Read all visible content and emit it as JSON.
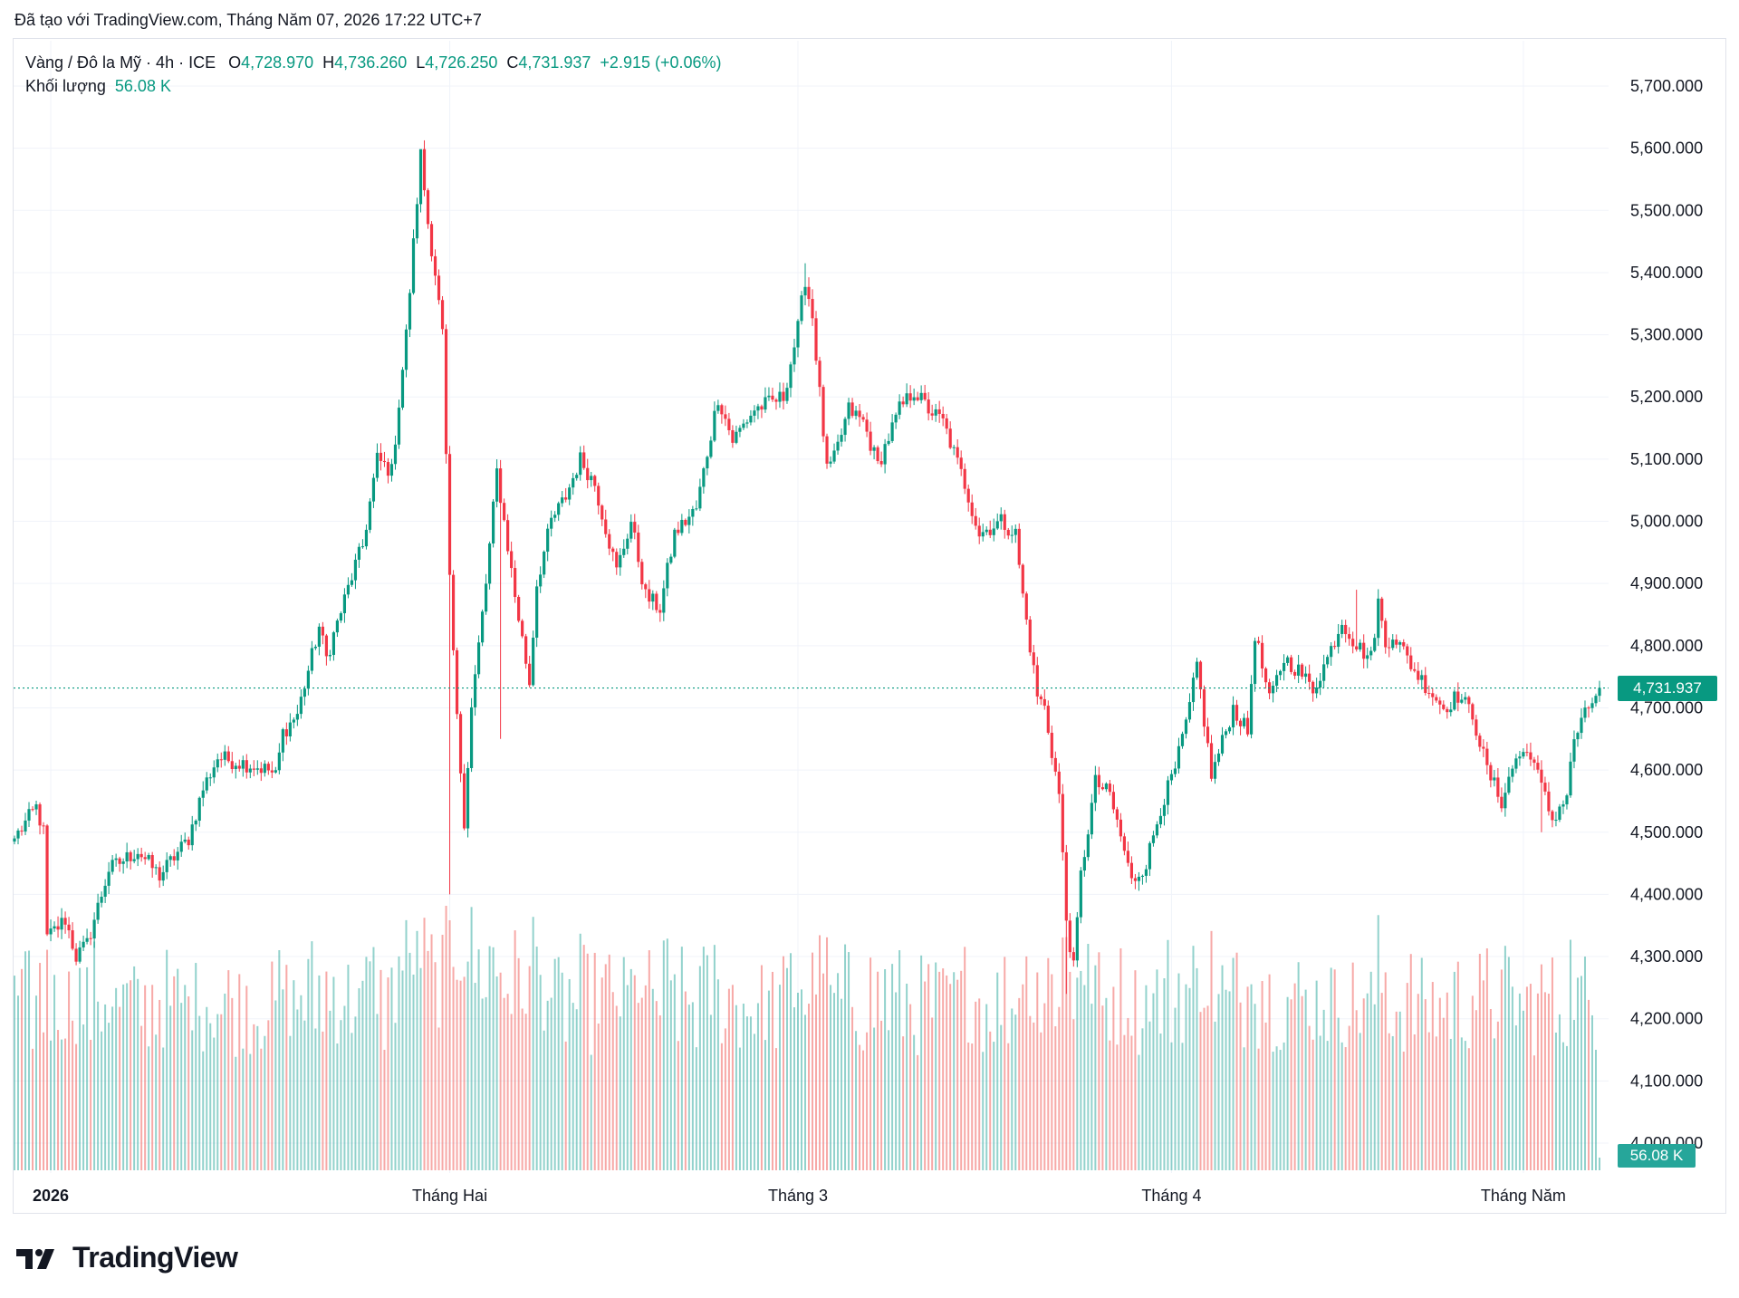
{
  "header": {
    "caption": "Đã tạo với TradingView.com, Tháng Năm 07, 2026 17:22 UTC+7"
  },
  "legend": {
    "symbol": "Vàng / Đô la Mỹ · 4h · ICE",
    "open_label": "O",
    "open": "4,728.970",
    "high_label": "H",
    "high": "4,736.260",
    "low_label": "L",
    "low": "4,726.250",
    "close_label": "C",
    "close": "4,731.937",
    "change": "+2.915 (+0.06%)",
    "volume_label": "Khối lượng",
    "volume": "56.08 K"
  },
  "price_tag": "4,731.937",
  "volume_tag": "56.08 K",
  "brand": {
    "name": "TradingView"
  },
  "colors": {
    "up": "#089981",
    "down": "#f23645",
    "vol_up": "#26a69a",
    "vol_down": "#ef5350",
    "grid": "#f0f3fa",
    "text": "#131722"
  },
  "chart_data": {
    "type": "candlestick",
    "ylim": [
      3950,
      5750
    ],
    "y_ticks": [
      {
        "value": 5700,
        "label": "5,700.000"
      },
      {
        "value": 5600,
        "label": "5,600.000"
      },
      {
        "value": 5500,
        "label": "5,500.000"
      },
      {
        "value": 5400,
        "label": "5,400.000"
      },
      {
        "value": 5300,
        "label": "5,300.000"
      },
      {
        "value": 5200,
        "label": "5,200.000"
      },
      {
        "value": 5100,
        "label": "5,100.000"
      },
      {
        "value": 5000,
        "label": "5,000.000"
      },
      {
        "value": 4900,
        "label": "4,900.000"
      },
      {
        "value": 4800,
        "label": "4,800.000"
      },
      {
        "value": 4700,
        "label": "4,700.000"
      },
      {
        "value": 4600,
        "label": "4,600.000"
      },
      {
        "value": 4500,
        "label": "4,500.000"
      },
      {
        "value": 4400,
        "label": "4,400.000"
      },
      {
        "value": 4300,
        "label": "4,300.000"
      },
      {
        "value": 4200,
        "label": "4,200.000"
      },
      {
        "value": 4100,
        "label": "4,100.000"
      },
      {
        "value": 4000,
        "label": "4,000.000"
      }
    ],
    "x_ticks": [
      {
        "label": "2026",
        "bold": true,
        "index": 10
      },
      {
        "label": "Tháng Hai",
        "bold": false,
        "index": 120
      },
      {
        "label": "Tháng 3",
        "bold": false,
        "index": 216
      },
      {
        "label": "Tháng 4",
        "bold": false,
        "index": 319
      },
      {
        "label": "Tháng Năm",
        "bold": false,
        "index": 416
      }
    ],
    "last_price": 4731.937,
    "bar_count": 438,
    "anchors": [
      [
        0,
        4490
      ],
      [
        6,
        4540
      ],
      [
        8,
        4500
      ],
      [
        9,
        4330
      ],
      [
        14,
        4360
      ],
      [
        17,
        4300
      ],
      [
        20,
        4320
      ],
      [
        26,
        4440
      ],
      [
        34,
        4470
      ],
      [
        40,
        4430
      ],
      [
        48,
        4490
      ],
      [
        52,
        4570
      ],
      [
        56,
        4620
      ],
      [
        64,
        4610
      ],
      [
        70,
        4600
      ],
      [
        72,
        4590
      ],
      [
        74,
        4660
      ],
      [
        78,
        4690
      ],
      [
        84,
        4830
      ],
      [
        86,
        4780
      ],
      [
        94,
        4930
      ],
      [
        96,
        4960
      ],
      [
        100,
        5100
      ],
      [
        104,
        5080
      ],
      [
        108,
        5300
      ],
      [
        112,
        5590
      ],
      [
        114,
        5480
      ],
      [
        116,
        5400
      ],
      [
        118,
        5300
      ],
      [
        120,
        4900
      ],
      [
        122,
        4680
      ],
      [
        124,
        4520
      ],
      [
        126,
        4700
      ],
      [
        130,
        4900
      ],
      [
        133,
        5080
      ],
      [
        138,
        4880
      ],
      [
        142,
        4740
      ],
      [
        144,
        4900
      ],
      [
        148,
        5000
      ],
      [
        152,
        5040
      ],
      [
        156,
        5100
      ],
      [
        160,
        5060
      ],
      [
        166,
        4920
      ],
      [
        170,
        5000
      ],
      [
        174,
        4880
      ],
      [
        178,
        4860
      ],
      [
        182,
        4980
      ],
      [
        188,
        5020
      ],
      [
        194,
        5200
      ],
      [
        198,
        5130
      ],
      [
        204,
        5180
      ],
      [
        212,
        5200
      ],
      [
        216,
        5310
      ],
      [
        218,
        5390
      ],
      [
        220,
        5330
      ],
      [
        224,
        5080
      ],
      [
        226,
        5100
      ],
      [
        230,
        5180
      ],
      [
        234,
        5160
      ],
      [
        238,
        5090
      ],
      [
        244,
        5180
      ],
      [
        248,
        5210
      ],
      [
        252,
        5180
      ],
      [
        256,
        5160
      ],
      [
        262,
        5060
      ],
      [
        266,
        4980
      ],
      [
        272,
        5000
      ],
      [
        276,
        4980
      ],
      [
        278,
        4880
      ],
      [
        282,
        4720
      ],
      [
        284,
        4700
      ],
      [
        288,
        4560
      ],
      [
        290,
        4360
      ],
      [
        292,
        4280
      ],
      [
        294,
        4430
      ],
      [
        298,
        4580
      ],
      [
        302,
        4560
      ],
      [
        306,
        4470
      ],
      [
        308,
        4420
      ],
      [
        312,
        4450
      ],
      [
        316,
        4540
      ],
      [
        320,
        4600
      ],
      [
        324,
        4700
      ],
      [
        326,
        4770
      ],
      [
        330,
        4590
      ],
      [
        336,
        4700
      ],
      [
        340,
        4660
      ],
      [
        342,
        4820
      ],
      [
        346,
        4710
      ],
      [
        350,
        4780
      ],
      [
        354,
        4760
      ],
      [
        358,
        4730
      ],
      [
        362,
        4780
      ],
      [
        366,
        4840
      ],
      [
        370,
        4800
      ],
      [
        374,
        4780
      ],
      [
        376,
        4870
      ],
      [
        378,
        4800
      ],
      [
        380,
        4820
      ],
      [
        386,
        4760
      ],
      [
        390,
        4730
      ],
      [
        394,
        4700
      ],
      [
        398,
        4720
      ],
      [
        402,
        4690
      ],
      [
        406,
        4600
      ],
      [
        410,
        4550
      ],
      [
        414,
        4620
      ],
      [
        418,
        4630
      ],
      [
        420,
        4590
      ],
      [
        424,
        4520
      ],
      [
        428,
        4560
      ],
      [
        430,
        4650
      ],
      [
        434,
        4700
      ],
      [
        437,
        4732
      ]
    ],
    "events": [
      {
        "index": 112,
        "high": 5598
      },
      {
        "index": 120,
        "low": 4400
      },
      {
        "index": 134,
        "low": 4650
      },
      {
        "index": 218,
        "high": 5415
      },
      {
        "index": 290,
        "low": 4240
      },
      {
        "index": 370,
        "high": 4890
      },
      {
        "index": 421,
        "low": 4500
      }
    ]
  }
}
